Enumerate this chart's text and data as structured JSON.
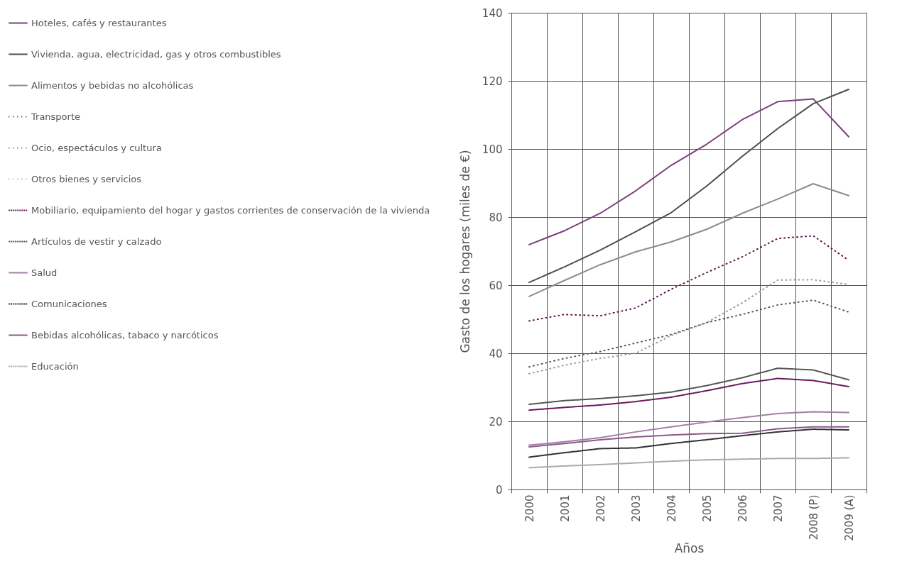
{
  "chart_data": {
    "type": "line",
    "xlabel": "Años",
    "ylabel": "Gasto de los hogares (miles de €)",
    "categories": [
      "2000",
      "2001",
      "2002",
      "2003",
      "2004",
      "2005",
      "2006",
      "2007",
      "2008 (P)",
      "2009 (A)"
    ],
    "ylim": [
      0,
      140
    ],
    "yticks": [
      0,
      20,
      40,
      60,
      80,
      100,
      120,
      140
    ],
    "grid": true,
    "legend": "left",
    "series": [
      {
        "name": "Hoteles, cafés y restaurantes",
        "color": "#7b3f7b",
        "line_style": "solid",
        "values": [
          71.9,
          76.0,
          81.1,
          87.7,
          95.2,
          101.4,
          108.6,
          113.9,
          114.7,
          103.6
        ]
      },
      {
        "name": "Vivienda, agua, electricidad, gas y otros combustibles",
        "color": "#4d4d4d",
        "line_style": "solid",
        "values": [
          60.8,
          65.4,
          70.3,
          75.7,
          81.3,
          89.1,
          97.8,
          106.0,
          113.3,
          117.5
        ]
      },
      {
        "name": "Alimentos y bebidas no alcohólicas",
        "color": "#8c8c8c",
        "line_style": "solid",
        "values": [
          56.7,
          61.4,
          66.0,
          69.8,
          72.7,
          76.4,
          81.1,
          85.3,
          89.8,
          86.3
        ]
      },
      {
        "name": "Transporte",
        "color": "#5c0a4a",
        "line_style": "dotted",
        "values": [
          49.5,
          51.4,
          51.0,
          53.3,
          58.8,
          63.7,
          68.3,
          73.7,
          74.5,
          67.3
        ]
      },
      {
        "name": "Ocio, espectáculos y cultura",
        "color": "#555555",
        "line_style": "dotted",
        "values": [
          36.0,
          38.5,
          40.5,
          43.0,
          45.5,
          49.0,
          51.4,
          54.2,
          55.6,
          52.1
        ]
      },
      {
        "name": "Otros bienes y servicios",
        "color": "#999999",
        "line_style": "dotted",
        "values": [
          34.0,
          36.5,
          38.5,
          40.0,
          45.2,
          49.0,
          54.8,
          61.5,
          61.6,
          60.2
        ]
      },
      {
        "name": "Mobiliario, equipamiento del hogar y gastos corrientes de conservación de la vivienda",
        "color": "#6b1a5e",
        "line_style": "dashed",
        "values": [
          23.3,
          24.1,
          24.8,
          25.8,
          27.1,
          29.0,
          31.1,
          32.6,
          32.0,
          30.2
        ]
      },
      {
        "name": "Artículos de vestir y calzado",
        "color": "#555555",
        "line_style": "dashed",
        "values": [
          25.0,
          26.1,
          26.7,
          27.5,
          28.6,
          30.5,
          32.8,
          35.6,
          35.1,
          32.2
        ]
      },
      {
        "name": "Salud",
        "color": "#a47fa4",
        "line_style": "solid",
        "values": [
          13.0,
          14.0,
          15.2,
          16.9,
          18.4,
          19.8,
          21.1,
          22.3,
          22.8,
          22.6
        ]
      },
      {
        "name": "Comunicaciones",
        "color": "#333333",
        "line_style": "dashed",
        "values": [
          9.5,
          10.8,
          12.0,
          12.2,
          13.5,
          14.6,
          15.8,
          16.9,
          17.7,
          17.5
        ]
      },
      {
        "name": "Bebidas alcohólicas, tabaco y narcóticos",
        "color": "#8a5a8a",
        "line_style": "solid",
        "values": [
          12.5,
          13.5,
          14.6,
          15.4,
          16.0,
          16.4,
          16.5,
          17.8,
          18.4,
          18.4
        ]
      },
      {
        "name": "Educación",
        "color": "#aaaaaa",
        "line_style": "dashed",
        "values": [
          6.4,
          6.9,
          7.3,
          7.8,
          8.3,
          8.7,
          8.9,
          9.1,
          9.1,
          9.3
        ]
      }
    ]
  }
}
